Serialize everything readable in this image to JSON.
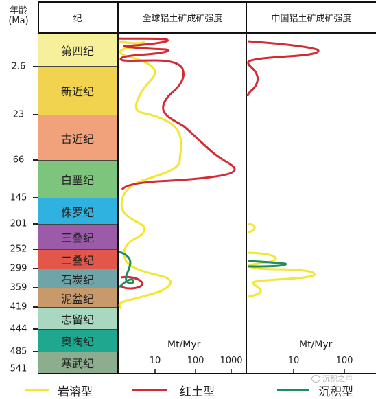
{
  "header": {
    "age_label": "年龄",
    "age_unit": "(Ma)",
    "period_col": "纪",
    "global_col": "全球铝土矿成矿强度",
    "china_col": "中国铝土矿成矿强度"
  },
  "ages": [
    "2.6",
    "23",
    "66",
    "145",
    "201",
    "252",
    "299",
    "359",
    "419",
    "444",
    "485",
    "541"
  ],
  "periods": [
    {
      "name": "第四纪",
      "color": "#F7F09A"
    },
    {
      "name": "新近纪",
      "color": "#F2D34F"
    },
    {
      "name": "古近纪",
      "color": "#F2A27A"
    },
    {
      "name": "白垩纪",
      "color": "#7DC47C"
    },
    {
      "name": "侏罗纪",
      "color": "#2FB2E0"
    },
    {
      "name": "三叠纪",
      "color": "#9B5BA8"
    },
    {
      "name": "二叠纪",
      "color": "#E2574A"
    },
    {
      "name": "石炭纪",
      "color": "#6FA5A9"
    },
    {
      "name": "泥盆纪",
      "color": "#C8996A"
    },
    {
      "name": "志留纪",
      "color": "#A9D8C0"
    },
    {
      "name": "奥陶纪",
      "color": "#1FA88F"
    },
    {
      "name": "寒武纪",
      "color": "#8DAE8E"
    }
  ],
  "axis": {
    "unit": "Mt/Myr",
    "global_ticks": [
      "10",
      "100",
      "1000"
    ],
    "china_ticks": [
      "10",
      "100"
    ]
  },
  "legend": [
    {
      "label": "岩溶型",
      "color": "#F2E62E"
    },
    {
      "label": "红土型",
      "color": "#D42A33"
    },
    {
      "label": "沉积型",
      "color": "#1E8E5A"
    }
  ],
  "watermark": "沉积之声"
}
